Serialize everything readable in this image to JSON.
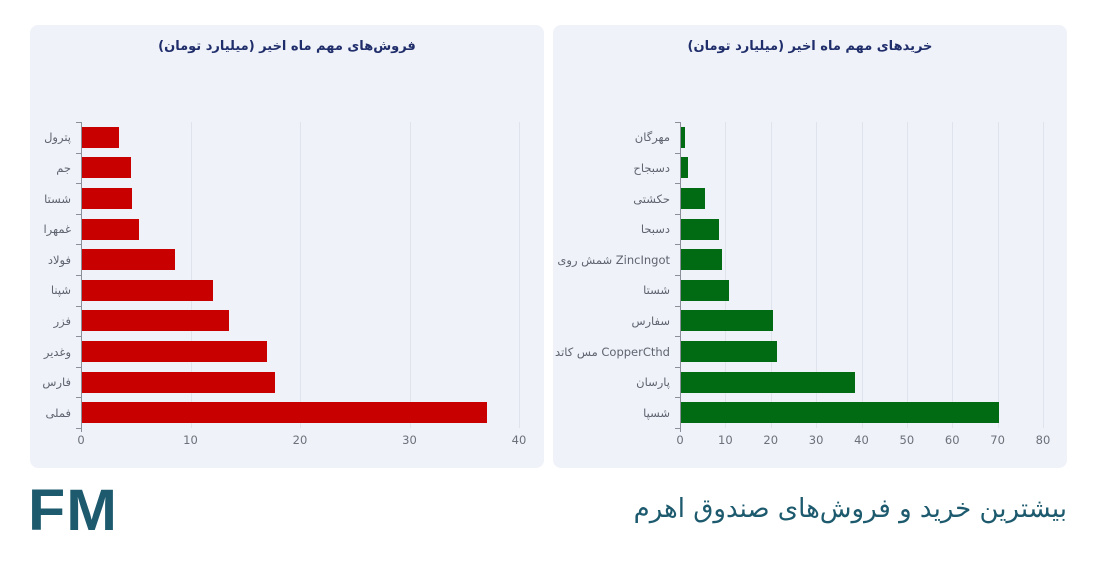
{
  "footer": {
    "logo": "FM",
    "title": "بیشترین خرید و فروش‌های صندوق اهرم"
  },
  "colors": {
    "sales_bar": "#c80000",
    "buys_bar": "#006b12",
    "panel_bg": "#eff2f8",
    "title_text": "#1f2d6b",
    "footer_text": "#1d5a6e"
  },
  "sales": {
    "title": "فروش‌های مهم ماه اخیر (میلیارد تومان)",
    "ticks": [
      "0",
      "10",
      "20",
      "30",
      "40"
    ]
  },
  "buys": {
    "title": "خریدهای مهم ماه اخیر (میلیارد تومان)",
    "ticks": [
      "0",
      "10",
      "20",
      "30",
      "40",
      "50",
      "60",
      "70",
      "80"
    ]
  },
  "chart_data": [
    {
      "type": "bar",
      "orientation": "horizontal",
      "title": "فروش‌های مهم ماه اخیر (میلیارد تومان)",
      "categories": [
        "پترول",
        "جم",
        "شستا",
        "غمهرا",
        "فولاد",
        "شپنا",
        "فزر",
        "وغدیر",
        "فارس",
        "فملی"
      ],
      "values": [
        3.4,
        4.5,
        4.6,
        5.2,
        8.5,
        12.0,
        13.4,
        16.9,
        17.6,
        37.0
      ],
      "xlabel": "",
      "ylabel": "",
      "xlim": [
        0,
        40
      ],
      "xticks": [
        0,
        10,
        20,
        30,
        40
      ],
      "grid": "vertical",
      "legend": "none",
      "color": "#c80000"
    },
    {
      "type": "bar",
      "orientation": "horizontal",
      "title": "خریدهای مهم ماه اخیر (میلیارد تومان)",
      "categories": [
        "مهرگان",
        "دسبجاح",
        "حکشتی",
        "دسبحا",
        "ZincIngot شمش روی",
        "شستا",
        "سفارس",
        "CopperCthd مس کاتد",
        "پارسان",
        "شسپا"
      ],
      "values": [
        0.9,
        1.5,
        5.3,
        8.4,
        9.0,
        10.6,
        20.3,
        21.1,
        38.3,
        70.0
      ],
      "xlabel": "",
      "ylabel": "",
      "xlim": [
        0,
        80
      ],
      "xticks": [
        0,
        10,
        20,
        30,
        40,
        50,
        60,
        70,
        80
      ],
      "grid": "vertical",
      "legend": "none",
      "color": "#006b12"
    }
  ]
}
